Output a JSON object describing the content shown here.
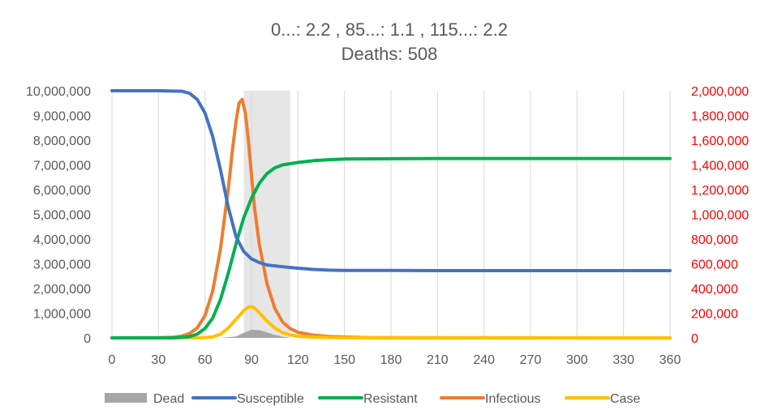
{
  "chart_data": {
    "type": "line",
    "title_lines": [
      "0...: 2.2 ,  85...: 1.1 ,  115...: 2.2",
      "Deaths: 508"
    ],
    "x_ticks": [
      0,
      30,
      60,
      90,
      120,
      150,
      180,
      210,
      240,
      270,
      300,
      330,
      360
    ],
    "xlim": [
      0,
      360
    ],
    "y_left": {
      "lim": [
        0,
        10000000
      ],
      "ticks": [
        0,
        1000000,
        2000000,
        3000000,
        4000000,
        5000000,
        6000000,
        7000000,
        8000000,
        9000000,
        10000000
      ],
      "tick_labels": [
        "0",
        "1,000,000",
        "2,000,000",
        "3,000,000",
        "4,000,000",
        "5,000,000",
        "6,000,000",
        "7,000,000",
        "8,000,000",
        "9,000,000",
        "10,000,000"
      ]
    },
    "y_right": {
      "lim": [
        0,
        2000000
      ],
      "color": "#ff0000",
      "ticks": [
        0,
        200000,
        400000,
        600000,
        800000,
        1000000,
        1200000,
        1400000,
        1600000,
        1800000,
        2000000
      ],
      "tick_labels": [
        "0",
        "200,000",
        "400,000",
        "600,000",
        "800,000",
        "1,000,000",
        "1,200,000",
        "1,400,000",
        "1,600,000",
        "1,800,000",
        "2,000,000"
      ]
    },
    "shaded_interval": {
      "x": [
        85,
        115
      ],
      "color": "#e6e6e6"
    },
    "grid": "vertical",
    "legend_position": "bottom",
    "series": [
      {
        "name": "Dead",
        "kind": "area",
        "axis": "left",
        "color": "#a6a6a6",
        "x": [
          0,
          70,
          80,
          85,
          90,
          95,
          100,
          105,
          110,
          115,
          360
        ],
        "y": [
          0,
          0,
          60000,
          200000,
          330000,
          310000,
          220000,
          120000,
          50000,
          0,
          0
        ]
      },
      {
        "name": "Susceptible",
        "kind": "line",
        "axis": "left",
        "color": "#4472c4",
        "x": [
          0,
          30,
          45,
          50,
          55,
          60,
          65,
          70,
          75,
          80,
          85,
          90,
          95,
          100,
          110,
          120,
          130,
          140,
          150,
          180,
          210,
          240,
          270,
          300,
          330,
          360
        ],
        "y": [
          10000000,
          10000000,
          9980000,
          9900000,
          9650000,
          9100000,
          8150000,
          6800000,
          5300000,
          4100000,
          3500000,
          3200000,
          3050000,
          2950000,
          2880000,
          2820000,
          2770000,
          2740000,
          2730000,
          2730000,
          2720000,
          2720000,
          2720000,
          2720000,
          2720000,
          2720000
        ]
      },
      {
        "name": "Resistant",
        "kind": "line",
        "axis": "left",
        "color": "#00b050",
        "x": [
          0,
          40,
          50,
          55,
          60,
          65,
          70,
          75,
          80,
          85,
          90,
          95,
          100,
          105,
          110,
          120,
          130,
          140,
          150,
          180,
          210,
          240,
          270,
          300,
          330,
          360
        ],
        "y": [
          0,
          0,
          50000,
          150000,
          380000,
          800000,
          1550000,
          2600000,
          3800000,
          4850000,
          5650000,
          6250000,
          6650000,
          6880000,
          7000000,
          7100000,
          7170000,
          7210000,
          7240000,
          7250000,
          7260000,
          7260000,
          7260000,
          7260000,
          7260000,
          7260000
        ]
      },
      {
        "name": "Infectious",
        "kind": "line",
        "axis": "right",
        "color": "#ed7d31",
        "x": [
          0,
          30,
          40,
          45,
          50,
          55,
          60,
          65,
          70,
          75,
          78,
          80,
          82,
          84,
          86,
          88,
          90,
          92,
          95,
          100,
          105,
          110,
          115,
          120,
          130,
          140,
          150,
          160,
          170,
          180,
          360
        ],
        "y": [
          0,
          1000,
          6000,
          14000,
          35000,
          80000,
          180000,
          380000,
          720000,
          1200000,
          1550000,
          1750000,
          1900000,
          1930000,
          1820000,
          1600000,
          1320000,
          1050000,
          760000,
          440000,
          240000,
          130000,
          75000,
          45000,
          22000,
          12000,
          7000,
          4000,
          2000,
          1000,
          0
        ]
      },
      {
        "name": "Case",
        "kind": "line",
        "axis": "left",
        "color": "#ffc000",
        "x": [
          0,
          60,
          65,
          70,
          75,
          80,
          85,
          88,
          90,
          92,
          95,
          100,
          105,
          110,
          115,
          120,
          130,
          140,
          150,
          180,
          360
        ],
        "y": [
          0,
          10000,
          40000,
          150000,
          400000,
          750000,
          1100000,
          1250000,
          1270000,
          1200000,
          1020000,
          680000,
          400000,
          220000,
          120000,
          70000,
          30000,
          15000,
          8000,
          2000,
          0
        ]
      }
    ]
  }
}
